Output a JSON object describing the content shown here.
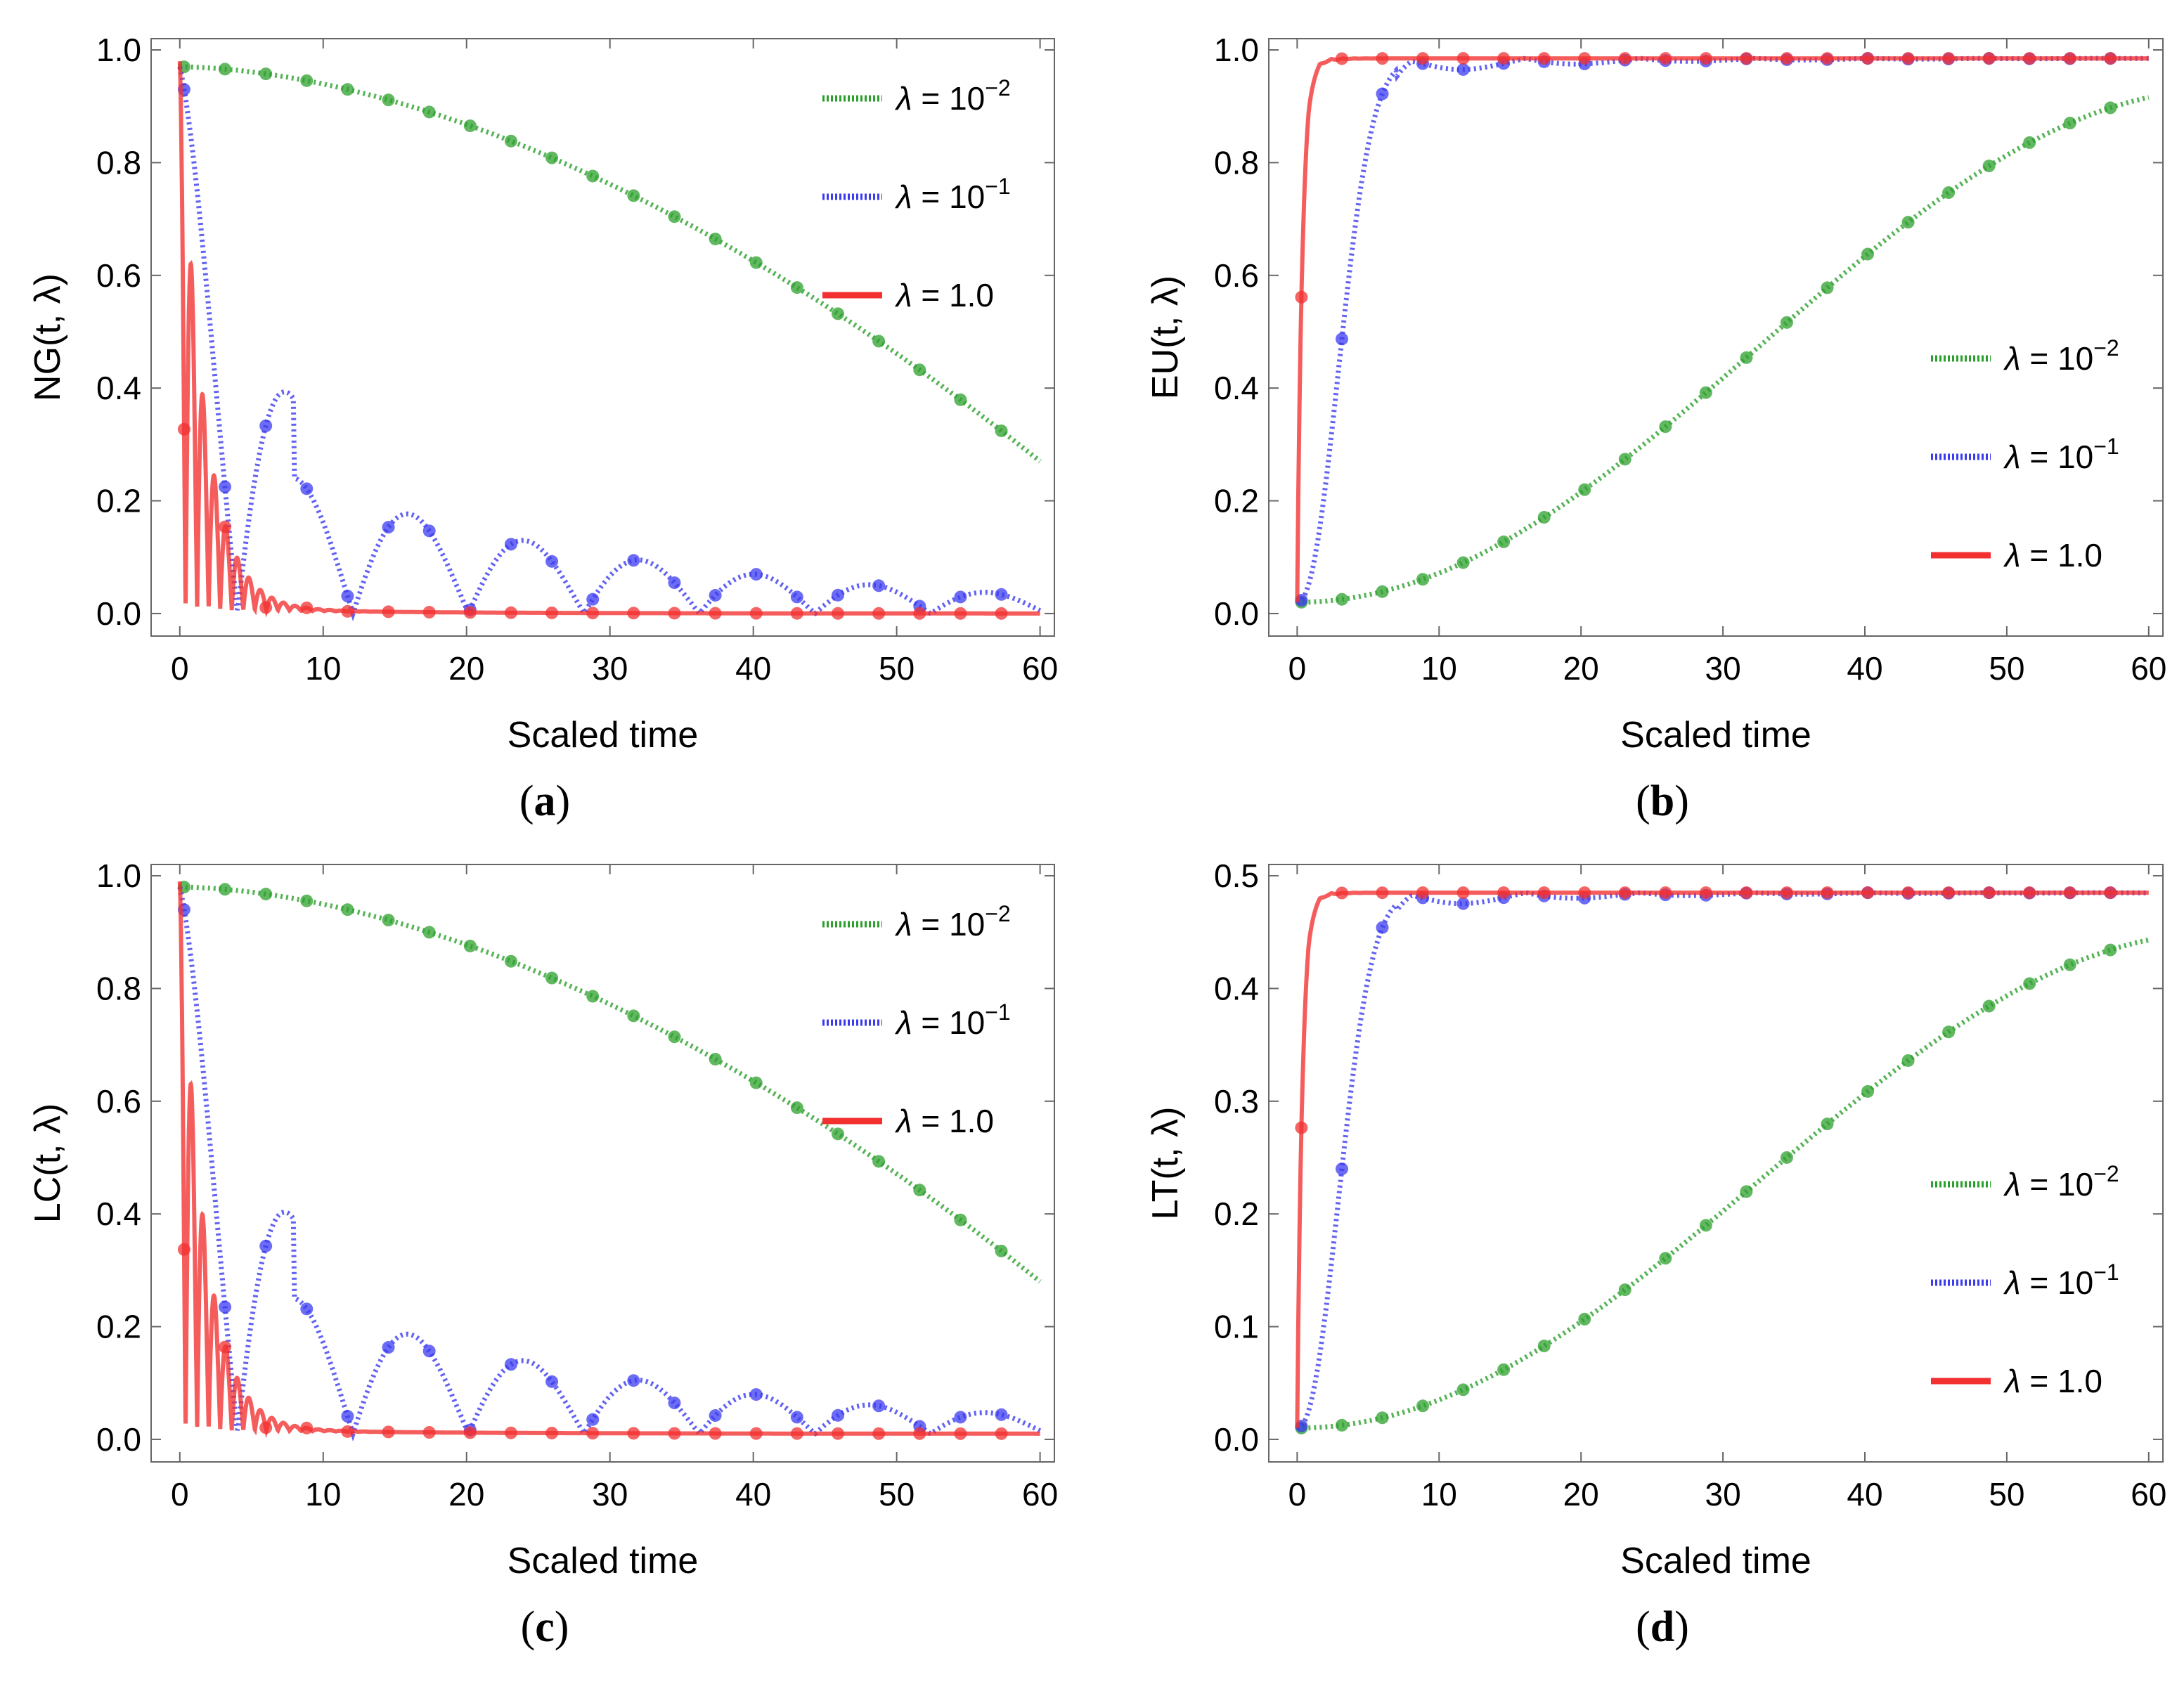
{
  "figure_title": "",
  "colors": {
    "green": "#2ca02c",
    "blue": "#3b3bf0",
    "red": "#f23030"
  },
  "legend_labels": [
    {
      "lambda": "λ = ",
      "base": "10",
      "exp": "−2"
    },
    {
      "lambda": "λ = ",
      "base": "10",
      "exp": "−1"
    },
    {
      "lambda": "λ = ",
      "base": "1.0",
      "exp": ""
    }
  ],
  "chart_data": [
    {
      "id": "a",
      "caption": "a",
      "type": "line",
      "ylabel": "NG(t, λ)",
      "xlabel": "Scaled time",
      "xlim": [
        -2,
        61
      ],
      "ylim": [
        -0.04,
        1.02
      ],
      "xticks": [
        0,
        10,
        20,
        30,
        40,
        50,
        60
      ],
      "yticks": [
        0.0,
        0.2,
        0.4,
        0.6,
        0.8,
        1.0
      ],
      "ytick_labels": [
        "0.0",
        "0.2",
        "0.4",
        "0.6",
        "0.8",
        "1.0"
      ],
      "legend_position": "top-right",
      "series": [
        {
          "name": "λ = 10^-2",
          "color": "green",
          "style": "dotted",
          "kind": "slow_decay",
          "start": 0.97,
          "end": 0.27
        },
        {
          "name": "λ = 10^-1",
          "color": "blue",
          "style": "dotted",
          "kind": "osc_decay",
          "start": 0.97,
          "omega": 0.39,
          "tau": 8.5
        },
        {
          "name": "λ = 1.0",
          "color": "red",
          "style": "solid",
          "kind": "fast_osc_decay",
          "start": 0.97,
          "omega": 3.9,
          "tau": 1.7,
          "floor": 0.0
        }
      ]
    },
    {
      "id": "b",
      "caption": "b",
      "type": "line",
      "ylabel": "EU(t, λ)",
      "xlabel": "Scaled time",
      "xlim": [
        -2,
        61
      ],
      "ylim": [
        -0.04,
        1.02
      ],
      "xticks": [
        0,
        10,
        20,
        30,
        40,
        50,
        60
      ],
      "yticks": [
        0.0,
        0.2,
        0.4,
        0.6,
        0.8,
        1.0
      ],
      "ytick_labels": [
        "0.0",
        "0.2",
        "0.4",
        "0.6",
        "0.8",
        "1.0"
      ],
      "legend_position": "center-right",
      "series": [
        {
          "name": "λ = 10^-2",
          "color": "green",
          "style": "dotted",
          "kind": "slow_rise",
          "start": 0.02,
          "end": 0.93
        },
        {
          "name": "λ = 10^-1",
          "color": "blue",
          "style": "dotted",
          "kind": "rise_osc",
          "start": 0.02,
          "end": 0.985
        },
        {
          "name": "λ = 1.0",
          "color": "red",
          "style": "solid",
          "kind": "fast_rise",
          "start": 0.02,
          "end": 0.985
        }
      ]
    },
    {
      "id": "c",
      "caption": "c",
      "type": "line",
      "ylabel": "LC(t, λ)",
      "xlabel": "Scaled time",
      "xlim": [
        -2,
        61
      ],
      "ylim": [
        -0.04,
        1.02
      ],
      "xticks": [
        0,
        10,
        20,
        30,
        40,
        50,
        60
      ],
      "yticks": [
        0.0,
        0.2,
        0.4,
        0.6,
        0.8,
        1.0
      ],
      "ytick_labels": [
        "0.0",
        "0.2",
        "0.4",
        "0.6",
        "0.8",
        "1.0"
      ],
      "legend_position": "top-right",
      "series": [
        {
          "name": "λ = 10^-2",
          "color": "green",
          "style": "dotted",
          "kind": "slow_decay",
          "start": 0.98,
          "end": 0.28
        },
        {
          "name": "λ = 10^-1",
          "color": "blue",
          "style": "dotted",
          "kind": "osc_decay",
          "start": 0.98,
          "omega": 0.39,
          "tau": 8.5,
          "floor": 0.01
        },
        {
          "name": "λ = 1.0",
          "color": "red",
          "style": "solid",
          "kind": "fast_osc_decay",
          "start": 0.98,
          "omega": 3.9,
          "tau": 1.7,
          "floor": 0.01
        }
      ]
    },
    {
      "id": "d",
      "caption": "d",
      "type": "line",
      "ylabel": "LT(t, λ)",
      "xlabel": "Scaled time",
      "xlim": [
        -2,
        61
      ],
      "ylim": [
        -0.02,
        0.51
      ],
      "xticks": [
        0,
        10,
        20,
        30,
        40,
        50,
        60
      ],
      "yticks": [
        0.0,
        0.1,
        0.2,
        0.3,
        0.4,
        0.5
      ],
      "ytick_labels": [
        "0.0",
        "0.1",
        "0.2",
        "0.3",
        "0.4",
        "0.5"
      ],
      "legend_position": "bottom-right",
      "series": [
        {
          "name": "λ = 10^-2",
          "color": "green",
          "style": "dotted",
          "kind": "slow_rise",
          "start": 0.01,
          "end": 0.45
        },
        {
          "name": "λ = 10^-1",
          "color": "blue",
          "style": "dotted",
          "kind": "rise_osc",
          "start": 0.01,
          "end": 0.485
        },
        {
          "name": "λ = 1.0",
          "color": "red",
          "style": "solid",
          "kind": "fast_rise",
          "start": 0.01,
          "end": 0.485
        }
      ]
    }
  ]
}
